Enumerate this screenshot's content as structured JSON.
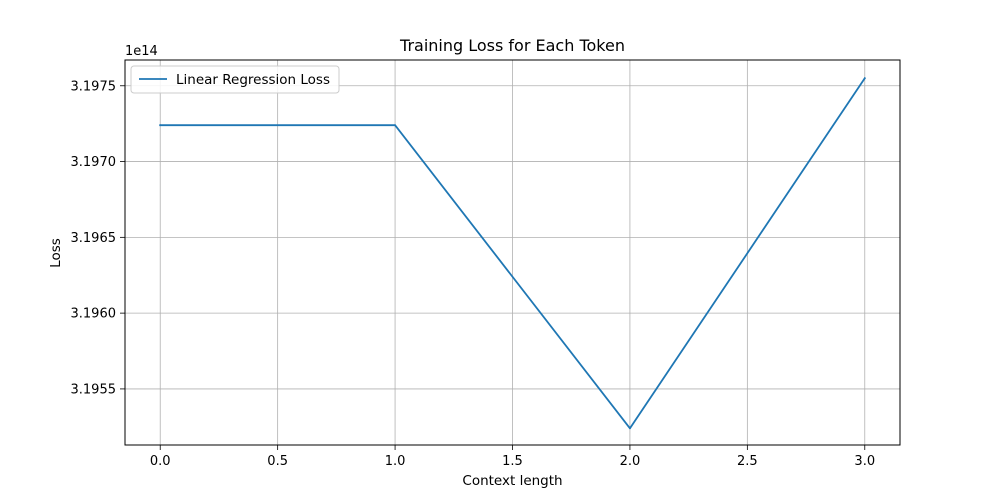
{
  "chart_data": {
    "type": "line",
    "title": "Training Loss for Each Token",
    "xlabel": "Context length",
    "ylabel": "Loss",
    "y_offset_label": "1e14",
    "xlim": [
      -0.15,
      3.15
    ],
    "ylim": [
      3.19513,
      3.19767
    ],
    "x_ticks": [
      0.0,
      0.5,
      1.0,
      1.5,
      2.0,
      2.5,
      3.0
    ],
    "x_tick_labels": [
      "0.0",
      "0.5",
      "1.0",
      "1.5",
      "2.0",
      "2.5",
      "3.0"
    ],
    "y_ticks": [
      3.1955,
      3.196,
      3.1965,
      3.197,
      3.1975
    ],
    "y_tick_labels": [
      "3.1955",
      "3.1960",
      "3.1965",
      "3.1970",
      "3.1975"
    ],
    "grid": true,
    "legend_position": "upper-left",
    "series": [
      {
        "name": "Linear Regression Loss",
        "color": "#1f77b4",
        "x": [
          0,
          1,
          2,
          3
        ],
        "y": [
          3.19724,
          3.19724,
          3.19524,
          3.19755
        ]
      }
    ]
  }
}
